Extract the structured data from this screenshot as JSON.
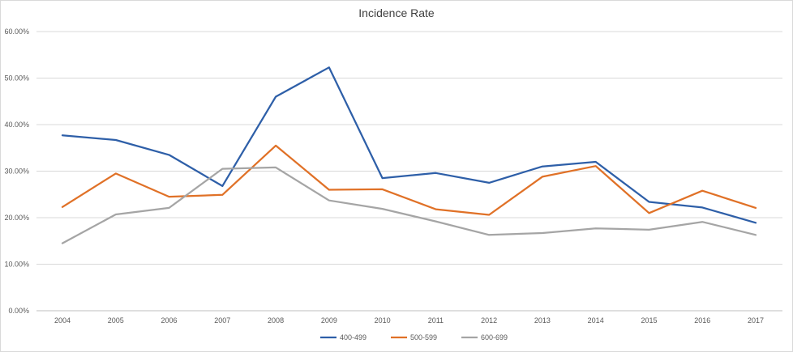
{
  "chart_data": {
    "type": "line",
    "title": "Incidence Rate",
    "xlabel": "",
    "ylabel": "",
    "x": [
      "2004",
      "2005",
      "2006",
      "2007",
      "2008",
      "2009",
      "2010",
      "2011",
      "2012",
      "2013",
      "2014",
      "2015",
      "2016",
      "2017"
    ],
    "ylim": [
      0,
      60
    ],
    "yticks": [
      "0.00%",
      "10.00%",
      "20.00%",
      "30.00%",
      "40.00%",
      "50.00%",
      "60.00%"
    ],
    "grid": true,
    "legend_position": "bottom",
    "series": [
      {
        "name": "400-499",
        "color": "#2e5fa8",
        "values": [
          37.7,
          36.7,
          33.5,
          26.8,
          46.0,
          52.3,
          28.5,
          29.6,
          27.5,
          31.0,
          32.0,
          23.4,
          22.2,
          18.9
        ]
      },
      {
        "name": "500-599",
        "color": "#e07127",
        "values": [
          22.3,
          29.5,
          24.5,
          24.9,
          35.5,
          26.0,
          26.1,
          21.8,
          20.6,
          28.8,
          31.1,
          21.0,
          25.8,
          22.1
        ]
      },
      {
        "name": "600-699",
        "color": "#a5a5a5",
        "values": [
          14.5,
          20.7,
          22.1,
          30.5,
          30.8,
          23.7,
          21.9,
          19.2,
          16.3,
          16.7,
          17.7,
          17.4,
          19.1,
          16.3
        ]
      }
    ]
  }
}
